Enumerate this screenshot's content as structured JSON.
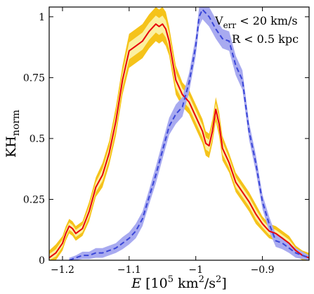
{
  "chart_data": {
    "type": "line",
    "xlim": [
      -1.22,
      -0.83
    ],
    "ylim": [
      0,
      1.04
    ],
    "x_ticks": [
      -1.2,
      -1.1,
      -1.0,
      -0.9
    ],
    "x_tick_labels": [
      "−1.2",
      "−1.1",
      "−1",
      "−0.9"
    ],
    "y_ticks": [
      0,
      0.25,
      0.5,
      0.75,
      1
    ],
    "y_tick_labels": [
      "0",
      "0.25",
      "0.5",
      "0.75",
      "1"
    ],
    "xlabel": {
      "main": "E",
      "rest": " [10",
      "exp1": "5",
      "mid": " km",
      "exp2": "2",
      "end": "/s",
      "exp3": "2",
      "close": "]"
    },
    "ylabel": {
      "main": "KH",
      "sub": "norm"
    },
    "annotations": [
      {
        "main": "V",
        "sub": "err",
        "rest": " < 20 km/s"
      },
      {
        "main": "R < 0.5 kpc"
      }
    ],
    "grid": false,
    "series": [
      {
        "style": "solid",
        "color": "#e8000a",
        "band_outer_color": "#f5c31a",
        "band_inner_color": "#fbf0a0",
        "x": [
          -1.22,
          -1.21,
          -1.2,
          -1.195,
          -1.19,
          -1.185,
          -1.18,
          -1.17,
          -1.16,
          -1.15,
          -1.14,
          -1.13,
          -1.12,
          -1.11,
          -1.1,
          -1.09,
          -1.08,
          -1.07,
          -1.06,
          -1.055,
          -1.05,
          -1.045,
          -1.04,
          -1.035,
          -1.03,
          -1.02,
          -1.01,
          -1.0,
          -0.99,
          -0.985,
          -0.98,
          -0.975,
          -0.97,
          -0.965,
          -0.96,
          -0.95,
          -0.94,
          -0.93,
          -0.92,
          -0.91,
          -0.9,
          -0.89,
          -0.88,
          -0.87,
          -0.86,
          -0.85,
          -0.84,
          -0.83
        ],
        "y": [
          0.01,
          0.03,
          0.07,
          0.11,
          0.14,
          0.13,
          0.11,
          0.13,
          0.2,
          0.3,
          0.35,
          0.44,
          0.57,
          0.74,
          0.86,
          0.88,
          0.9,
          0.94,
          0.97,
          0.96,
          0.97,
          0.95,
          0.9,
          0.82,
          0.74,
          0.68,
          0.65,
          0.59,
          0.53,
          0.48,
          0.47,
          0.53,
          0.62,
          0.56,
          0.46,
          0.4,
          0.32,
          0.28,
          0.24,
          0.19,
          0.15,
          0.12,
          0.11,
          0.09,
          0.07,
          0.04,
          0.02,
          0.01
        ],
        "band_outer": [
          0.03,
          0.035,
          0.03,
          0.03,
          0.03,
          0.03,
          0.03,
          0.03,
          0.04,
          0.04,
          0.05,
          0.05,
          0.06,
          0.06,
          0.07,
          0.07,
          0.07,
          0.07,
          0.07,
          0.07,
          0.07,
          0.07,
          0.06,
          0.06,
          0.06,
          0.05,
          0.05,
          0.05,
          0.05,
          0.05,
          0.05,
          0.05,
          0.05,
          0.05,
          0.05,
          0.04,
          0.04,
          0.04,
          0.04,
          0.04,
          0.03,
          0.03,
          0.03,
          0.03,
          0.03,
          0.02,
          0.02,
          0.02
        ],
        "band_inner": [
          0.015,
          0.015,
          0.015,
          0.015,
          0.015,
          0.015,
          0.015,
          0.015,
          0.02,
          0.02,
          0.025,
          0.025,
          0.03,
          0.03,
          0.035,
          0.035,
          0.035,
          0.035,
          0.035,
          0.035,
          0.035,
          0.035,
          0.03,
          0.03,
          0.03,
          0.025,
          0.025,
          0.025,
          0.025,
          0.025,
          0.025,
          0.025,
          0.025,
          0.025,
          0.025,
          0.02,
          0.02,
          0.02,
          0.02,
          0.02,
          0.015,
          0.015,
          0.015,
          0.015,
          0.015,
          0.01,
          0.01,
          0.01
        ]
      },
      {
        "style": "dashed",
        "color": "#3a46d8",
        "band_outer_color": "#a8aaf0",
        "band_inner_color": "#a8aaf0",
        "x": [
          -1.19,
          -1.18,
          -1.17,
          -1.16,
          -1.15,
          -1.14,
          -1.13,
          -1.12,
          -1.11,
          -1.1,
          -1.09,
          -1.08,
          -1.07,
          -1.06,
          -1.05,
          -1.04,
          -1.03,
          -1.02,
          -1.01,
          -1.0,
          -0.995,
          -0.99,
          -0.98,
          -0.97,
          -0.96,
          -0.95,
          -0.94,
          -0.93,
          -0.92,
          -0.91,
          -0.9,
          -0.89,
          -0.88,
          -0.87,
          -0.86,
          -0.85,
          -0.84,
          -0.83
        ],
        "y": [
          0.0,
          0.01,
          0.02,
          0.02,
          0.03,
          0.03,
          0.04,
          0.05,
          0.07,
          0.09,
          0.12,
          0.17,
          0.26,
          0.35,
          0.45,
          0.55,
          0.6,
          0.63,
          0.73,
          0.88,
          1.0,
          1.03,
          1.0,
          0.95,
          0.91,
          0.9,
          0.8,
          0.74,
          0.53,
          0.4,
          0.24,
          0.15,
          0.08,
          0.07,
          0.05,
          0.03,
          0.02,
          0.01
        ],
        "band_outer": [
          0.01,
          0.01,
          0.015,
          0.015,
          0.02,
          0.02,
          0.02,
          0.02,
          0.025,
          0.025,
          0.03,
          0.03,
          0.03,
          0.035,
          0.035,
          0.035,
          0.04,
          0.04,
          0.04,
          0.04,
          0.04,
          0.04,
          0.04,
          0.04,
          0.04,
          0.04,
          0.04,
          0.04,
          0.035,
          0.035,
          0.03,
          0.03,
          0.025,
          0.025,
          0.02,
          0.02,
          0.015,
          0.01
        ],
        "band_inner": [
          0,
          0,
          0,
          0,
          0,
          0,
          0,
          0,
          0,
          0,
          0,
          0,
          0,
          0,
          0,
          0,
          0,
          0,
          0,
          0,
          0,
          0,
          0,
          0,
          0,
          0,
          0,
          0,
          0,
          0,
          0,
          0,
          0,
          0,
          0,
          0,
          0,
          0
        ]
      }
    ]
  }
}
